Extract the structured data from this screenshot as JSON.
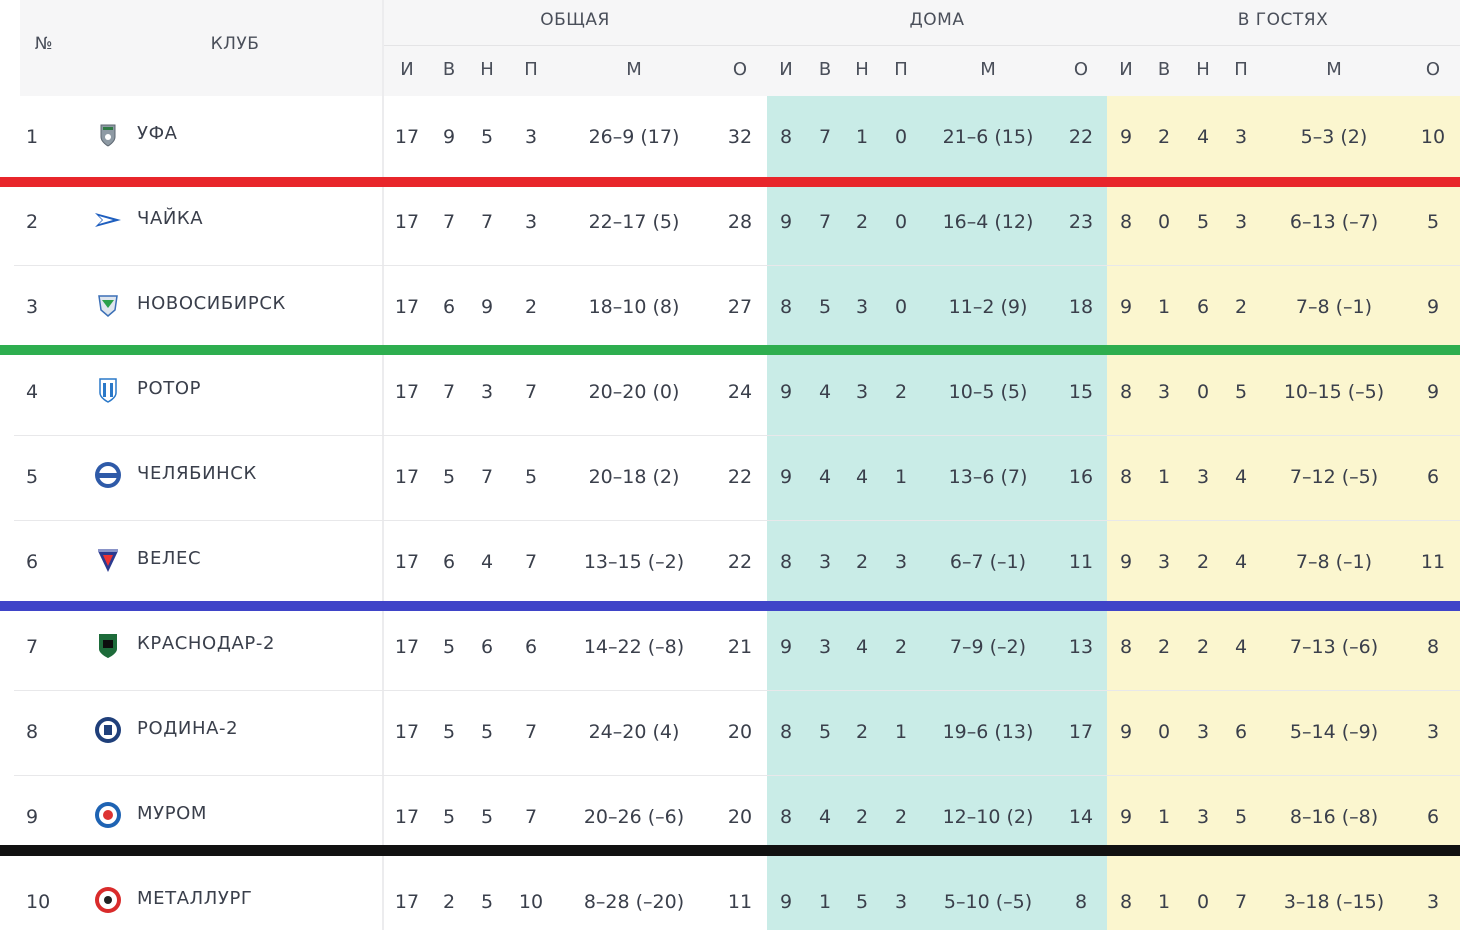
{
  "header": {
    "rank_label": "№",
    "club_label": "КЛУБ",
    "groups": [
      "ОБЩАЯ",
      "ДОМА",
      "В ГОСТЯХ"
    ],
    "sub": [
      "И",
      "В",
      "Н",
      "П",
      "М",
      "О"
    ]
  },
  "colors": {
    "home_bg": "#c9ece7",
    "away_bg": "#fbf6cf",
    "header_bg": "#f6f6f7",
    "promotion": "#e8262b",
    "playoff": "#2eae4f",
    "mid": "#3f44c8",
    "relegation": "#111111"
  },
  "rows": [
    {
      "rank": "1",
      "club": "УФА",
      "logo": "ufa-logo-icon",
      "all": [
        "17",
        "9",
        "5",
        "3",
        "26–9 (17)",
        "32"
      ],
      "home": [
        "8",
        "7",
        "1",
        "0",
        "21–6 (15)",
        "22"
      ],
      "away": [
        "9",
        "2",
        "4",
        "3",
        "5–3 (2)",
        "10"
      ]
    },
    {
      "rank": "2",
      "club": "ЧАЙКА",
      "logo": "chayka-logo-icon",
      "all": [
        "17",
        "7",
        "7",
        "3",
        "22–17 (5)",
        "28"
      ],
      "home": [
        "9",
        "7",
        "2",
        "0",
        "16–4 (12)",
        "23"
      ],
      "away": [
        "8",
        "0",
        "5",
        "3",
        "6–13 (–7)",
        "5"
      ]
    },
    {
      "rank": "3",
      "club": "НОВОСИБИРСК",
      "logo": "novosibirsk-logo-icon",
      "all": [
        "17",
        "6",
        "9",
        "2",
        "18–10 (8)",
        "27"
      ],
      "home": [
        "8",
        "5",
        "3",
        "0",
        "11–2 (9)",
        "18"
      ],
      "away": [
        "9",
        "1",
        "6",
        "2",
        "7–8 (–1)",
        "9"
      ]
    },
    {
      "rank": "4",
      "club": "РОТОР",
      "logo": "rotor-logo-icon",
      "all": [
        "17",
        "7",
        "3",
        "7",
        "20–20 (0)",
        "24"
      ],
      "home": [
        "9",
        "4",
        "3",
        "2",
        "10–5 (5)",
        "15"
      ],
      "away": [
        "8",
        "3",
        "0",
        "5",
        "10–15 (–5)",
        "9"
      ]
    },
    {
      "rank": "5",
      "club": "ЧЕЛЯБИНСК",
      "logo": "chelyabinsk-logo-icon",
      "all": [
        "17",
        "5",
        "7",
        "5",
        "20–18 (2)",
        "22"
      ],
      "home": [
        "9",
        "4",
        "4",
        "1",
        "13–6 (7)",
        "16"
      ],
      "away": [
        "8",
        "1",
        "3",
        "4",
        "7–12 (–5)",
        "6"
      ]
    },
    {
      "rank": "6",
      "club": "ВЕЛЕС",
      "logo": "veles-logo-icon",
      "all": [
        "17",
        "6",
        "4",
        "7",
        "13–15 (–2)",
        "22"
      ],
      "home": [
        "8",
        "3",
        "2",
        "3",
        "6–7 (–1)",
        "11"
      ],
      "away": [
        "9",
        "3",
        "2",
        "4",
        "7–8 (–1)",
        "11"
      ]
    },
    {
      "rank": "7",
      "club": "КРАСНОДАР-2",
      "logo": "krasnodar-logo-icon",
      "all": [
        "17",
        "5",
        "6",
        "6",
        "14–22 (–8)",
        "21"
      ],
      "home": [
        "9",
        "3",
        "4",
        "2",
        "7–9 (–2)",
        "13"
      ],
      "away": [
        "8",
        "2",
        "2",
        "4",
        "7–13 (–6)",
        "8"
      ]
    },
    {
      "rank": "8",
      "club": "РОДИНА-2",
      "logo": "rodina-logo-icon",
      "all": [
        "17",
        "5",
        "5",
        "7",
        "24–20 (4)",
        "20"
      ],
      "home": [
        "8",
        "5",
        "2",
        "1",
        "19–6 (13)",
        "17"
      ],
      "away": [
        "9",
        "0",
        "3",
        "6",
        "5–14 (–9)",
        "3"
      ]
    },
    {
      "rank": "9",
      "club": "МУРОМ",
      "logo": "murom-logo-icon",
      "all": [
        "17",
        "5",
        "5",
        "7",
        "20–26 (–6)",
        "20"
      ],
      "home": [
        "8",
        "4",
        "2",
        "2",
        "12–10 (2)",
        "14"
      ],
      "away": [
        "9",
        "1",
        "3",
        "5",
        "8–16 (–8)",
        "6"
      ]
    },
    {
      "rank": "10",
      "club": "МЕТАЛЛУРГ",
      "logo": "metallurg-logo-icon",
      "all": [
        "17",
        "2",
        "5",
        "10",
        "8–28 (–20)",
        "11"
      ],
      "home": [
        "9",
        "1",
        "5",
        "3",
        "5–10 (–5)",
        "8"
      ],
      "away": [
        "8",
        "1",
        "0",
        "7",
        "3–18 (–15)",
        "3"
      ]
    }
  ]
}
